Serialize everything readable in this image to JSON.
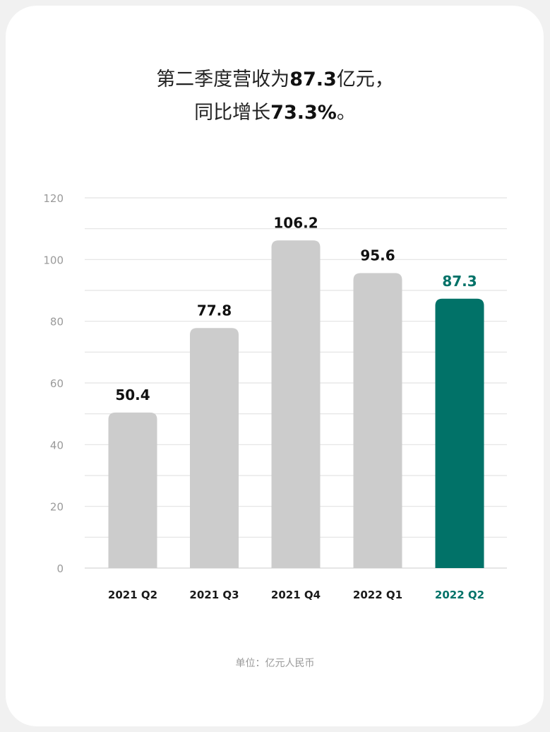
{
  "headline": {
    "line1_prefix": "第二季度营收为",
    "line1_value": "87.3",
    "line1_suffix": "亿元，",
    "line2_prefix": "同比增长",
    "line2_value": "73.3%",
    "line2_suffix": "。"
  },
  "unit_label": "单位：亿元人民币",
  "colors": {
    "bar": "#cccccc",
    "highlight": "#017268",
    "grid": "#e3e3e3",
    "tick": "#9a9a9a"
  },
  "chart_data": {
    "type": "bar",
    "title": "第二季度营收为87.3亿元，同比增长73.3%。",
    "categories": [
      "2021 Q2",
      "2021 Q3",
      "2021 Q4",
      "2022 Q1",
      "2022 Q2"
    ],
    "values": [
      50.4,
      77.8,
      106.2,
      95.6,
      87.3
    ],
    "value_labels": [
      "50.4",
      "77.8",
      "106.2",
      "95.6",
      "87.3"
    ],
    "highlight_index": 4,
    "ylim": [
      0,
      120
    ],
    "yticks": [
      0,
      20,
      40,
      60,
      80,
      100,
      120
    ],
    "minor_grid_step": 10,
    "grid": true,
    "xlabel": "",
    "ylabel": "单位：亿元人民币"
  }
}
